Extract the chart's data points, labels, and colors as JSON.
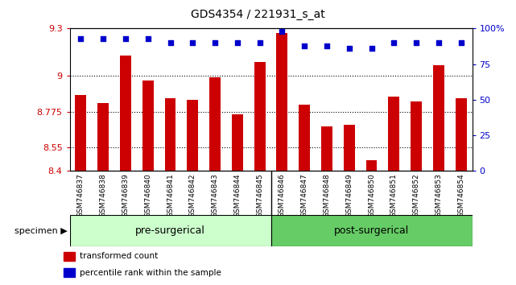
{
  "title": "GDS4354 / 221931_s_at",
  "samples": [
    "GSM746837",
    "GSM746838",
    "GSM746839",
    "GSM746840",
    "GSM746841",
    "GSM746842",
    "GSM746843",
    "GSM746844",
    "GSM746845",
    "GSM746846",
    "GSM746847",
    "GSM746848",
    "GSM746849",
    "GSM746850",
    "GSM746851",
    "GSM746852",
    "GSM746853",
    "GSM746854"
  ],
  "bar_values": [
    8.88,
    8.83,
    9.13,
    8.97,
    8.86,
    8.85,
    8.99,
    8.76,
    9.09,
    9.27,
    8.82,
    8.68,
    8.69,
    8.47,
    8.87,
    8.84,
    9.07,
    8.86
  ],
  "percentile_values": [
    93,
    93,
    93,
    93,
    90,
    90,
    90,
    90,
    90,
    98,
    88,
    88,
    86,
    86,
    90,
    90,
    90,
    90
  ],
  "bar_color": "#cc0000",
  "dot_color": "#0000cc",
  "ylim_left": [
    8.4,
    9.3
  ],
  "ylim_right": [
    0,
    100
  ],
  "yticks_left": [
    8.4,
    8.55,
    8.775,
    9.0,
    9.3
  ],
  "ytick_labels_left": [
    "8.4",
    "8.55",
    "8.775",
    "9",
    "9.3"
  ],
  "yticks_right": [
    0,
    25,
    50,
    75,
    100
  ],
  "ytick_labels_right": [
    "0",
    "25",
    "50",
    "75",
    "100%"
  ],
  "group1_label": "pre-surgerical",
  "group2_label": "post-surgerical",
  "group1_count": 9,
  "specimen_label": "specimen",
  "legend1": "transformed count",
  "legend2": "percentile rank within the sample",
  "bar_color_hex": "#cc0000",
  "dot_color_hex": "#0000cc",
  "xlabel_color": "#cc0000",
  "right_axis_color": "#0000cc",
  "group1_color": "#ccffcc",
  "group2_color": "#66cc66",
  "xtick_bg_color": "#c8c8c8"
}
